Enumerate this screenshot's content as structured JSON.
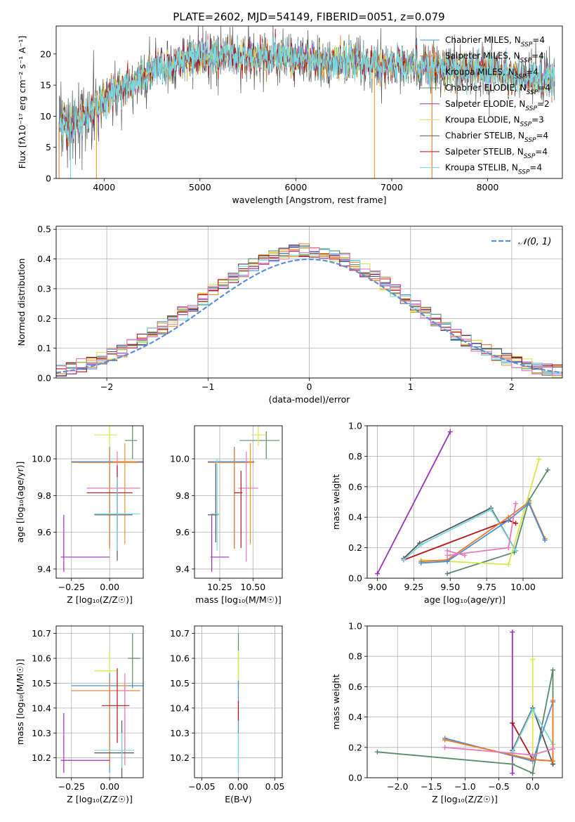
{
  "title": "PLATE=2602, MJD=54149, FIBERID=0051, z=0.079",
  "colors": {
    "chabrier_miles": "#4a8fd8",
    "salpeter_miles": "#e87a2c",
    "kroupa_miles": "#e8962c",
    "chabrier_elodie": "#5a8a6a",
    "salpeter_elodie": "#9b30b8",
    "kroupa_elodie": "#d8e84a",
    "chabrier_stelib": "#555555",
    "salpeter_stelib": "#b01818",
    "kroupa_stelib": "#7ad8e0",
    "pink": "#e87ab8",
    "normal": "#5b8fd8"
  },
  "legend_spectrum": [
    {
      "base": "Chabrier MILES, N",
      "sub": "SSP",
      "tail": "=4",
      "color": "#4a8fd8"
    },
    {
      "base": "Salpeter MILES, N",
      "sub": "SSP",
      "tail": "=4",
      "color": "#e87a2c"
    },
    {
      "base": "Kroupa MILES, N",
      "sub": "SSP",
      "tail": "=4",
      "color": "#e8962c"
    },
    {
      "base": "Chabrier ELODIE, N",
      "sub": "SSP",
      "tail": "=4",
      "color": "#5a8a6a"
    },
    {
      "base": "Salpeter ELODIE, N",
      "sub": "SSP",
      "tail": "=2",
      "color": "#9b30b8"
    },
    {
      "base": "Kroupa ELODIE, N",
      "sub": "SSP",
      "tail": "=3",
      "color": "#d8e84a"
    },
    {
      "base": "Chabrier STELIB, N",
      "sub": "SSP",
      "tail": "=4",
      "color": "#555555"
    },
    {
      "base": "Salpeter STELIB, N",
      "sub": "SSP",
      "tail": "=4",
      "color": "#b01818"
    },
    {
      "base": "Kroupa STELIB, N",
      "sub": "SSP",
      "tail": "=4",
      "color": "#7ad8e0"
    }
  ],
  "legend_normal": "𝒩(0, 1)",
  "chart_data": [
    {
      "id": "spectrum",
      "type": "line",
      "xlabel": "wavelength [Angstrom, rest frame]",
      "ylabel": "Flux [fλ10⁻¹⁷ erg cm⁻² s⁻¹ A⁻¹]",
      "xlim": [
        3500,
        8780
      ],
      "ylim": [
        0,
        24.5
      ],
      "xticks": [
        4000,
        5000,
        6000,
        7000,
        8000
      ],
      "yticks": [
        0,
        5,
        10,
        15,
        20
      ],
      "envelope": {
        "x": [
          3530,
          3650,
          3750,
          3850,
          3950,
          4100,
          4300,
          4500,
          4700,
          4900,
          5100,
          5300,
          5500,
          5700,
          5900,
          6100,
          6300,
          6500,
          6700,
          6900,
          7100,
          7300,
          7500,
          7700,
          7900,
          8100,
          8300,
          8500,
          8700
        ],
        "y": [
          9.0,
          8.5,
          9.5,
          11.0,
          12.0,
          14.0,
          15.5,
          17.5,
          18.5,
          19.0,
          19.8,
          19.8,
          19.5,
          19.5,
          19.5,
          19.3,
          19.0,
          19.0,
          18.5,
          18.5,
          18.2,
          18.0,
          17.8,
          17.5,
          17.3,
          17.0,
          16.5,
          16.0,
          15.5
        ]
      }
    },
    {
      "id": "residuals",
      "type": "step",
      "xlabel": "(data-model)/error",
      "ylabel": "Normed distribution",
      "xlim": [
        -2.5,
        2.5
      ],
      "ylim": [
        0,
        0.51
      ],
      "xticks": [
        -2,
        -1,
        0,
        1,
        2
      ],
      "yticks": [
        0.0,
        0.1,
        0.2,
        0.3,
        0.4,
        0.5
      ],
      "normal_mean": 0,
      "normal_sigma": 1
    },
    {
      "id": "age_vs_Z",
      "type": "errorbar",
      "xlabel": "Z [log₁₀(Z/Z☉)]",
      "ylabel": "age  [log₁₀(age/yr)]",
      "xlim": [
        -0.35,
        0.22
      ],
      "ylim": [
        9.35,
        10.18
      ],
      "xticks": [
        -0.25,
        0.0
      ],
      "yticks": [
        9.4,
        9.6,
        9.8,
        10.0
      ],
      "points": [
        {
          "x": 0.15,
          "y": 10.1,
          "xe": [
            0.05,
            0.03
          ],
          "ye": [
            0.1,
            0.08
          ],
          "c": "chabrier_elodie"
        },
        {
          "x": 0.0,
          "y": 10.13,
          "xe": [
            0.1,
            0.05
          ],
          "ye": [
            0.06,
            0.05
          ],
          "c": "kroupa_elodie"
        },
        {
          "x": 0.0,
          "y": 9.985,
          "xe": [
            0.25,
            0.25
          ],
          "ye": [
            0.47,
            0.08
          ],
          "c": "chabrier_miles"
        },
        {
          "x": 0.0,
          "y": 9.98,
          "xe": [
            0.25,
            0.25
          ],
          "ye": [
            0.47,
            0.08
          ],
          "c": "salpeter_miles"
        },
        {
          "x": 0.1,
          "y": 9.985,
          "xe": [
            0.08,
            0.08
          ],
          "ye": [
            0.45,
            0.1
          ],
          "c": "kroupa_miles"
        },
        {
          "x": 0.05,
          "y": 9.84,
          "xe": [
            0.2,
            0.15
          ],
          "ye": [
            0.3,
            0.2
          ],
          "c": "pink"
        },
        {
          "x": 0.05,
          "y": 9.815,
          "xe": [
            0.2,
            0.1
          ],
          "ye": [
            0.2,
            0.15
          ],
          "c": "salpeter_stelib"
        },
        {
          "x": 0.05,
          "y": 9.695,
          "xe": [
            0.15,
            0.1
          ],
          "ye": [
            0.25,
            0.2
          ],
          "c": "chabrier_stelib"
        },
        {
          "x": 0.05,
          "y": 9.7,
          "xe": [
            0.15,
            0.15
          ],
          "ye": [
            0.2,
            0.2
          ],
          "c": "kroupa_stelib"
        },
        {
          "x": -0.3,
          "y": 9.465,
          "xe": [
            0.02,
            0.3
          ],
          "ye": [
            0.08,
            0.23
          ],
          "c": "salpeter_elodie"
        }
      ]
    },
    {
      "id": "age_vs_mass",
      "type": "errorbar",
      "xlabel": "mass [log₁₀(M/M☉)]",
      "ylabel": "",
      "xlim": [
        10.06,
        10.72
      ],
      "ylim": [
        9.35,
        10.18
      ],
      "xticks": [
        10.25,
        10.5
      ],
      "yticks": [
        9.4,
        9.6,
        9.8,
        10.0
      ],
      "points": [
        {
          "x": 10.6,
          "y": 10.1,
          "xe": [
            0.2,
            0.1
          ],
          "ye": [
            0.1,
            0.05
          ],
          "c": "chabrier_elodie"
        },
        {
          "x": 10.54,
          "y": 10.13,
          "xe": [
            0.05,
            0.05
          ],
          "ye": [
            0.06,
            0.06
          ],
          "c": "kroupa_elodie"
        },
        {
          "x": 10.36,
          "y": 9.985,
          "xe": [
            0.2,
            0.15
          ],
          "ye": [
            0.47,
            0.08
          ],
          "c": "chabrier_miles"
        },
        {
          "x": 10.36,
          "y": 9.98,
          "xe": [
            0.2,
            0.15
          ],
          "ye": [
            0.47,
            0.08
          ],
          "c": "salpeter_miles"
        },
        {
          "x": 10.48,
          "y": 9.985,
          "xe": [
            0.02,
            0.02
          ],
          "ye": [
            0.45,
            0.1
          ],
          "c": "kroupa_miles"
        },
        {
          "x": 10.45,
          "y": 9.84,
          "xe": [
            0.06,
            0.09
          ],
          "ye": [
            0.4,
            0.2
          ],
          "c": "pink"
        },
        {
          "x": 10.41,
          "y": 9.815,
          "xe": [
            0.05,
            0.01
          ],
          "ye": [
            0.3,
            0.12
          ],
          "c": "salpeter_stelib"
        },
        {
          "x": 10.22,
          "y": 9.695,
          "xe": [
            0.06,
            0.02
          ],
          "ye": [
            0.15,
            0.28
          ],
          "c": "chabrier_stelib"
        },
        {
          "x": 10.23,
          "y": 9.7,
          "xe": [
            0.05,
            0.02
          ],
          "ye": [
            0.2,
            0.3
          ],
          "c": "kroupa_stelib"
        },
        {
          "x": 10.19,
          "y": 9.465,
          "xe": [
            0.01,
            0.13
          ],
          "ye": [
            0.08,
            0.23
          ],
          "c": "salpeter_elodie"
        }
      ]
    },
    {
      "id": "massweight_vs_age",
      "type": "line",
      "xlabel": "age  [log₁₀(age/yr)]",
      "ylabel": "mass weight",
      "xlim": [
        8.93,
        10.27
      ],
      "ylim": [
        0,
        1.0
      ],
      "xticks": [
        9.0,
        9.25,
        9.5,
        9.75,
        10.0
      ],
      "yticks": [
        0.0,
        0.2,
        0.4,
        0.6,
        0.8,
        1.0
      ],
      "series": [
        {
          "c": "salpeter_elodie",
          "x": [
            9.0,
            9.5
          ],
          "y": [
            0.03,
            0.96
          ]
        },
        {
          "c": "chabrier_elodie",
          "x": [
            9.48,
            9.94,
            10.04,
            10.17
          ],
          "y": [
            0.03,
            0.17,
            0.51,
            0.71
          ]
        },
        {
          "c": "kroupa_elodie",
          "x": [
            9.3,
            9.9,
            10.11
          ],
          "y": [
            0.12,
            0.09,
            0.78
          ]
        },
        {
          "c": "salpeter_stelib",
          "x": [
            9.18,
            9.9,
            9.95
          ],
          "y": [
            0.12,
            0.38,
            0.36
          ]
        },
        {
          "c": "chabrier_stelib",
          "x": [
            9.18,
            9.29,
            9.78,
            9.95
          ],
          "y": [
            0.13,
            0.23,
            0.46,
            0.18
          ]
        },
        {
          "c": "kroupa_stelib",
          "x": [
            9.18,
            9.3,
            9.78,
            9.95
          ],
          "y": [
            0.12,
            0.22,
            0.45,
            0.18
          ]
        },
        {
          "c": "salpeter_miles",
          "x": [
            9.3,
            9.48,
            9.9,
            10.04,
            10.15
          ],
          "y": [
            0.11,
            0.12,
            0.4,
            0.5,
            0.26
          ]
        },
        {
          "c": "chabrier_miles",
          "x": [
            9.3,
            9.48,
            9.9,
            10.04,
            10.15
          ],
          "y": [
            0.1,
            0.11,
            0.38,
            0.49,
            0.25
          ]
        },
        {
          "c": "pink",
          "x": [
            9.48,
            9.9,
            9.95
          ],
          "y": [
            0.15,
            0.2,
            0.49
          ]
        },
        {
          "c": "pink",
          "x": [
            9.48,
            9.6
          ],
          "y": [
            0.18,
            0.15
          ]
        }
      ]
    },
    {
      "id": "mass_vs_Z",
      "type": "errorbar",
      "xlabel": "Z [log₁₀(Z/Z☉)]",
      "ylabel": "mass [log₁₀(M/M☉)]",
      "xlim": [
        -0.35,
        0.22
      ],
      "ylim": [
        10.12,
        10.73
      ],
      "xticks": [
        -0.25,
        0.0
      ],
      "yticks": [
        10.2,
        10.3,
        10.4,
        10.5,
        10.6,
        10.7
      ],
      "points": [
        {
          "x": 0.15,
          "y": 10.6,
          "xe": [
            0.03,
            0.05
          ],
          "ye": [
            0.12,
            0.1
          ],
          "c": "chabrier_elodie"
        },
        {
          "x": 0.0,
          "y": 10.55,
          "xe": [
            0.1,
            0.05
          ],
          "ye": [
            0.05,
            0.08
          ],
          "c": "kroupa_elodie"
        },
        {
          "x": 0.0,
          "y": 10.49,
          "xe": [
            0.25,
            0.25
          ],
          "ye": [
            0.35,
            0.05
          ],
          "c": "chabrier_miles"
        },
        {
          "x": 0.0,
          "y": 10.47,
          "xe": [
            0.25,
            0.2
          ],
          "ye": [
            0.3,
            0.05
          ],
          "c": "salpeter_miles"
        },
        {
          "x": 0.1,
          "y": 10.49,
          "xe": [
            0.05,
            0.02
          ],
          "ye": [
            0.3,
            0.02
          ],
          "c": "kroupa_miles"
        },
        {
          "x": 0.1,
          "y": 10.47,
          "xe": [
            0.02,
            0.02
          ],
          "ye": [
            0.3,
            0.07
          ],
          "c": "pink"
        },
        {
          "x": 0.05,
          "y": 10.41,
          "xe": [
            0.1,
            0.08
          ],
          "ye": [
            0.15,
            0.15
          ],
          "c": "salpeter_stelib"
        },
        {
          "x": 0.08,
          "y": 10.22,
          "xe": [
            0.18,
            0.08
          ],
          "ye": [
            0.13,
            0.13
          ],
          "c": "chabrier_stelib"
        },
        {
          "x": 0.08,
          "y": 10.23,
          "xe": [
            0.18,
            0.08
          ],
          "ye": [
            0.07,
            0.07
          ],
          "c": "kroupa_stelib"
        },
        {
          "x": -0.3,
          "y": 10.19,
          "xe": [
            0.02,
            0.3
          ],
          "ye": [
            0.05,
            0.19
          ],
          "c": "salpeter_elodie"
        }
      ]
    },
    {
      "id": "mass_vs_ebv",
      "type": "errorbar",
      "xlabel": "E(B-V)",
      "ylabel": "",
      "xlim": [
        -0.06,
        0.06
      ],
      "ylim": [
        10.12,
        10.73
      ],
      "xticks": [
        -0.05,
        0.0,
        0.05
      ],
      "yticks": [
        10.2,
        10.3,
        10.4,
        10.5,
        10.6,
        10.7
      ],
      "points": [
        {
          "x": 0.0,
          "y": 10.6,
          "xe": [
            0,
            0
          ],
          "ye": [
            0.12,
            0.1
          ],
          "c": "chabrier_elodie"
        },
        {
          "x": 0.0,
          "y": 10.55,
          "xe": [
            0,
            0
          ],
          "ye": [
            0.05,
            0.08
          ],
          "c": "kroupa_elodie"
        },
        {
          "x": 0.0,
          "y": 10.49,
          "xe": [
            0,
            0
          ],
          "ye": [
            0.35,
            0.02
          ],
          "c": "chabrier_miles"
        },
        {
          "x": 0.0,
          "y": 10.41,
          "xe": [
            0,
            0
          ],
          "ye": [
            0.06,
            0.02
          ],
          "c": "salpeter_stelib"
        },
        {
          "x": 0.0,
          "y": 10.22,
          "xe": [
            0,
            0
          ],
          "ye": [
            0.08,
            0.08
          ],
          "c": "kroupa_stelib"
        }
      ]
    },
    {
      "id": "massweight_vs_Z",
      "type": "line",
      "xlabel": "Z [log₁₀(Z/Z☉)]",
      "ylabel": "mass weight",
      "xlim": [
        -2.45,
        0.44
      ],
      "ylim": [
        0,
        1.0
      ],
      "xticks": [
        -2.0,
        -1.5,
        -1.0,
        -0.5,
        0.0
      ],
      "yticks": [
        0.0,
        0.2,
        0.4,
        0.6,
        0.8,
        1.0
      ],
      "series": [
        {
          "c": "salpeter_elodie",
          "x": [
            -0.3,
            -0.3
          ],
          "y": [
            0.03,
            0.96
          ]
        },
        {
          "c": "kroupa_elodie",
          "x": [
            0.0,
            0.0
          ],
          "y": [
            0.12,
            0.78
          ]
        },
        {
          "c": "chabrier_elodie",
          "x": [
            -2.3,
            -0.3,
            0.0,
            0.3,
            0.3
          ],
          "y": [
            0.17,
            0.09,
            0.03,
            0.71,
            0.09
          ]
        },
        {
          "c": "salpeter_stelib",
          "x": [
            -0.3,
            0.0,
            0.3
          ],
          "y": [
            0.36,
            0.12,
            0.11
          ]
        },
        {
          "c": "chabrier_stelib",
          "x": [
            -0.3,
            0.0,
            0.3
          ],
          "y": [
            0.18,
            0.46,
            0.09
          ]
        },
        {
          "c": "kroupa_stelib",
          "x": [
            -0.3,
            0.0,
            0.3
          ],
          "y": [
            0.17,
            0.45,
            0.22
          ]
        },
        {
          "c": "chabrier_miles",
          "x": [
            -1.3,
            0.0,
            0.3
          ],
          "y": [
            0.26,
            0.11,
            0.5
          ]
        },
        {
          "c": "salpeter_miles",
          "x": [
            -1.3,
            0.0,
            0.3,
            0.3
          ],
          "y": [
            0.25,
            0.12,
            0.11,
            0.51
          ]
        },
        {
          "c": "pink",
          "x": [
            -1.3,
            0.0,
            0.3
          ],
          "y": [
            0.2,
            0.15,
            0.19
          ]
        }
      ]
    }
  ]
}
